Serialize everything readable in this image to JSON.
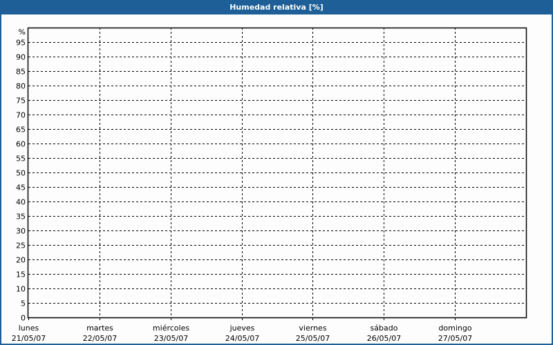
{
  "chart_data": {
    "type": "line",
    "title": "Humedad relativa [%]",
    "ylabel": "%",
    "ylim": [
      0,
      100
    ],
    "yticks": [
      0,
      5,
      10,
      15,
      20,
      25,
      30,
      35,
      40,
      45,
      50,
      55,
      60,
      65,
      70,
      75,
      80,
      85,
      90,
      95
    ],
    "categories": [
      {
        "day": "lunes",
        "date": "21/05/07"
      },
      {
        "day": "martes",
        "date": "22/05/07"
      },
      {
        "day": "miércoles",
        "date": "23/05/07"
      },
      {
        "day": "jueves",
        "date": "24/05/07"
      },
      {
        "day": "viernes",
        "date": "25/05/07"
      },
      {
        "day": "sábado",
        "date": "26/05/07"
      },
      {
        "day": "domingo",
        "date": "27/05/07"
      }
    ],
    "grid": true,
    "series": []
  },
  "colors": {
    "titlebar": "#1d5f96",
    "background": "#fcfdfc",
    "grid": "#000000"
  }
}
